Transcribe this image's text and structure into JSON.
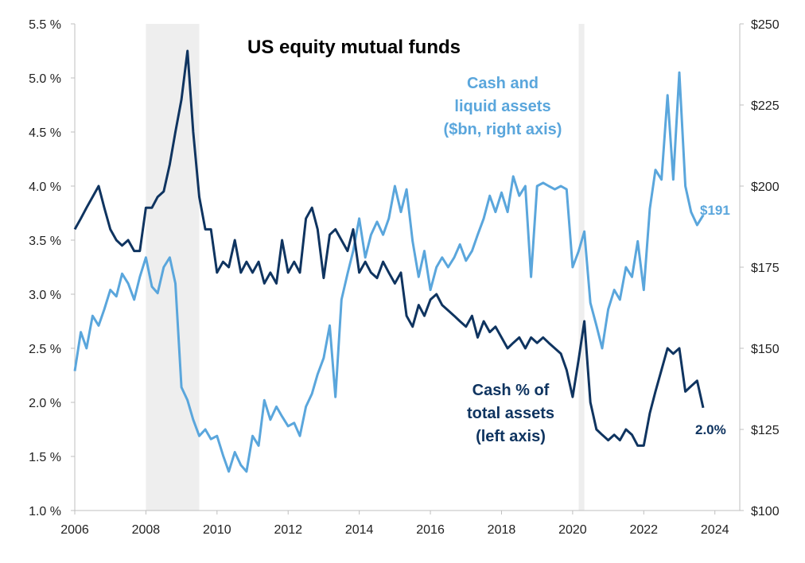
{
  "chart_data": {
    "type": "line",
    "title": "US equity mutual funds",
    "x_ticks": [
      "2006",
      "2008",
      "2010",
      "2012",
      "2014",
      "2016",
      "2018",
      "2020",
      "2022",
      "2024"
    ],
    "xlim": [
      2006,
      2024.7
    ],
    "left_axis": {
      "ticks": [
        "1.0 %",
        "1.5 %",
        "2.0 %",
        "2.5 %",
        "3.0 %",
        "3.5 %",
        "4.0 %",
        "4.5 %",
        "5.0 %",
        "5.5 %"
      ],
      "range": [
        1.0,
        5.5
      ]
    },
    "right_axis": {
      "ticks": [
        "$100",
        "$125",
        "$150",
        "$175",
        "$200",
        "$225",
        "$250"
      ],
      "range": [
        100,
        250
      ]
    },
    "shaded_periods": [
      [
        2008.0,
        2009.5
      ],
      [
        2020.17,
        2020.33
      ]
    ],
    "series": [
      {
        "name": "Cash and liquid assets ($bn, right axis)",
        "axis": "right",
        "color": "#5aa6dc",
        "label_lines": [
          "Cash and",
          "liquid assets",
          "($bn, right axis)"
        ],
        "end_label": "$191",
        "points": [
          [
            2006.0,
            143
          ],
          [
            2006.17,
            155
          ],
          [
            2006.33,
            150
          ],
          [
            2006.5,
            160
          ],
          [
            2006.67,
            157
          ],
          [
            2006.83,
            162
          ],
          [
            2007.0,
            168
          ],
          [
            2007.17,
            166
          ],
          [
            2007.33,
            173
          ],
          [
            2007.5,
            170
          ],
          [
            2007.67,
            165
          ],
          [
            2007.83,
            172
          ],
          [
            2008.0,
            178
          ],
          [
            2008.17,
            169
          ],
          [
            2008.33,
            167
          ],
          [
            2008.5,
            175
          ],
          [
            2008.67,
            178
          ],
          [
            2008.83,
            170
          ],
          [
            2009.0,
            138
          ],
          [
            2009.17,
            134
          ],
          [
            2009.33,
            128
          ],
          [
            2009.5,
            123
          ],
          [
            2009.67,
            125
          ],
          [
            2009.83,
            122
          ],
          [
            2010.0,
            123
          ],
          [
            2010.17,
            117
          ],
          [
            2010.33,
            112
          ],
          [
            2010.5,
            118
          ],
          [
            2010.67,
            114
          ],
          [
            2010.83,
            112
          ],
          [
            2011.0,
            123
          ],
          [
            2011.17,
            120
          ],
          [
            2011.33,
            134
          ],
          [
            2011.5,
            128
          ],
          [
            2011.67,
            132
          ],
          [
            2011.83,
            129
          ],
          [
            2012.0,
            126
          ],
          [
            2012.17,
            127
          ],
          [
            2012.33,
            123
          ],
          [
            2012.5,
            132
          ],
          [
            2012.67,
            136
          ],
          [
            2012.83,
            142
          ],
          [
            2013.0,
            147
          ],
          [
            2013.17,
            157
          ],
          [
            2013.33,
            135
          ],
          [
            2013.5,
            165
          ],
          [
            2013.67,
            173
          ],
          [
            2013.83,
            180
          ],
          [
            2014.0,
            190
          ],
          [
            2014.17,
            178
          ],
          [
            2014.33,
            185
          ],
          [
            2014.5,
            189
          ],
          [
            2014.67,
            185
          ],
          [
            2014.83,
            190
          ],
          [
            2015.0,
            200
          ],
          [
            2015.17,
            192
          ],
          [
            2015.33,
            199
          ],
          [
            2015.5,
            183
          ],
          [
            2015.67,
            172
          ],
          [
            2015.83,
            180
          ],
          [
            2016.0,
            168
          ],
          [
            2016.17,
            175
          ],
          [
            2016.33,
            178
          ],
          [
            2016.5,
            175
          ],
          [
            2016.67,
            178
          ],
          [
            2016.83,
            182
          ],
          [
            2017.0,
            177
          ],
          [
            2017.17,
            180
          ],
          [
            2017.33,
            185
          ],
          [
            2017.5,
            190
          ],
          [
            2017.67,
            197
          ],
          [
            2017.83,
            192
          ],
          [
            2018.0,
            198
          ],
          [
            2018.17,
            192
          ],
          [
            2018.33,
            203
          ],
          [
            2018.5,
            197
          ],
          [
            2018.67,
            200
          ],
          [
            2018.83,
            172
          ],
          [
            2019.0,
            200
          ],
          [
            2019.17,
            201
          ],
          [
            2019.33,
            200
          ],
          [
            2019.5,
            199
          ],
          [
            2019.67,
            200
          ],
          [
            2019.83,
            199
          ],
          [
            2020.0,
            175
          ],
          [
            2020.17,
            180
          ],
          [
            2020.33,
            186
          ],
          [
            2020.5,
            164
          ],
          [
            2020.67,
            157
          ],
          [
            2020.83,
            150
          ],
          [
            2021.0,
            162
          ],
          [
            2021.17,
            168
          ],
          [
            2021.33,
            165
          ],
          [
            2021.5,
            175
          ],
          [
            2021.67,
            172
          ],
          [
            2021.83,
            183
          ],
          [
            2022.0,
            168
          ],
          [
            2022.17,
            193
          ],
          [
            2022.33,
            205
          ],
          [
            2022.5,
            202
          ],
          [
            2022.67,
            228
          ],
          [
            2022.83,
            202
          ],
          [
            2023.0,
            235
          ],
          [
            2023.17,
            200
          ],
          [
            2023.33,
            192
          ],
          [
            2023.5,
            188
          ],
          [
            2023.67,
            191
          ]
        ]
      },
      {
        "name": "Cash % of total assets (left axis)",
        "axis": "left",
        "color": "#0f3460",
        "label_lines": [
          "Cash % of",
          "total assets",
          "(left axis)"
        ],
        "end_label": "2.0%",
        "points": [
          [
            2006.0,
            3.6
          ],
          [
            2006.17,
            3.7
          ],
          [
            2006.33,
            3.8
          ],
          [
            2006.5,
            3.9
          ],
          [
            2006.67,
            4.0
          ],
          [
            2006.83,
            3.8
          ],
          [
            2007.0,
            3.6
          ],
          [
            2007.17,
            3.5
          ],
          [
            2007.33,
            3.45
          ],
          [
            2007.5,
            3.5
          ],
          [
            2007.67,
            3.4
          ],
          [
            2007.83,
            3.4
          ],
          [
            2008.0,
            3.8
          ],
          [
            2008.17,
            3.8
          ],
          [
            2008.33,
            3.9
          ],
          [
            2008.5,
            3.95
          ],
          [
            2008.67,
            4.2
          ],
          [
            2008.83,
            4.5
          ],
          [
            2009.0,
            4.8
          ],
          [
            2009.17,
            5.25
          ],
          [
            2009.33,
            4.5
          ],
          [
            2009.5,
            3.9
          ],
          [
            2009.67,
            3.6
          ],
          [
            2009.83,
            3.6
          ],
          [
            2010.0,
            3.2
          ],
          [
            2010.17,
            3.3
          ],
          [
            2010.33,
            3.25
          ],
          [
            2010.5,
            3.5
          ],
          [
            2010.67,
            3.2
          ],
          [
            2010.83,
            3.3
          ],
          [
            2011.0,
            3.2
          ],
          [
            2011.17,
            3.3
          ],
          [
            2011.33,
            3.1
          ],
          [
            2011.5,
            3.2
          ],
          [
            2011.67,
            3.1
          ],
          [
            2011.83,
            3.5
          ],
          [
            2012.0,
            3.2
          ],
          [
            2012.17,
            3.3
          ],
          [
            2012.33,
            3.2
          ],
          [
            2012.5,
            3.7
          ],
          [
            2012.67,
            3.8
          ],
          [
            2012.83,
            3.6
          ],
          [
            2013.0,
            3.15
          ],
          [
            2013.17,
            3.55
          ],
          [
            2013.33,
            3.6
          ],
          [
            2013.5,
            3.5
          ],
          [
            2013.67,
            3.4
          ],
          [
            2013.83,
            3.6
          ],
          [
            2014.0,
            3.2
          ],
          [
            2014.17,
            3.3
          ],
          [
            2014.33,
            3.2
          ],
          [
            2014.5,
            3.15
          ],
          [
            2014.67,
            3.3
          ],
          [
            2014.83,
            3.2
          ],
          [
            2015.0,
            3.1
          ],
          [
            2015.17,
            3.2
          ],
          [
            2015.33,
            2.8
          ],
          [
            2015.5,
            2.7
          ],
          [
            2015.67,
            2.9
          ],
          [
            2015.83,
            2.8
          ],
          [
            2016.0,
            2.95
          ],
          [
            2016.17,
            3.0
          ],
          [
            2016.33,
            2.9
          ],
          [
            2016.5,
            2.85
          ],
          [
            2016.67,
            2.8
          ],
          [
            2016.83,
            2.75
          ],
          [
            2017.0,
            2.7
          ],
          [
            2017.17,
            2.8
          ],
          [
            2017.33,
            2.6
          ],
          [
            2017.5,
            2.75
          ],
          [
            2017.67,
            2.65
          ],
          [
            2017.83,
            2.7
          ],
          [
            2018.0,
            2.6
          ],
          [
            2018.17,
            2.5
          ],
          [
            2018.33,
            2.55
          ],
          [
            2018.5,
            2.6
          ],
          [
            2018.67,
            2.5
          ],
          [
            2018.83,
            2.6
          ],
          [
            2019.0,
            2.55
          ],
          [
            2019.17,
            2.6
          ],
          [
            2019.33,
            2.55
          ],
          [
            2019.5,
            2.5
          ],
          [
            2019.67,
            2.45
          ],
          [
            2019.83,
            2.3
          ],
          [
            2020.0,
            2.05
          ],
          [
            2020.17,
            2.4
          ],
          [
            2020.33,
            2.75
          ],
          [
            2020.5,
            2.0
          ],
          [
            2020.67,
            1.75
          ],
          [
            2020.83,
            1.7
          ],
          [
            2021.0,
            1.65
          ],
          [
            2021.17,
            1.7
          ],
          [
            2021.33,
            1.65
          ],
          [
            2021.5,
            1.75
          ],
          [
            2021.67,
            1.7
          ],
          [
            2021.83,
            1.6
          ],
          [
            2022.0,
            1.6
          ],
          [
            2022.17,
            1.9
          ],
          [
            2022.33,
            2.1
          ],
          [
            2022.5,
            2.3
          ],
          [
            2022.67,
            2.5
          ],
          [
            2022.83,
            2.45
          ],
          [
            2023.0,
            2.5
          ],
          [
            2023.17,
            2.1
          ],
          [
            2023.33,
            2.15
          ],
          [
            2023.5,
            2.2
          ],
          [
            2023.67,
            1.95
          ]
        ]
      }
    ]
  }
}
